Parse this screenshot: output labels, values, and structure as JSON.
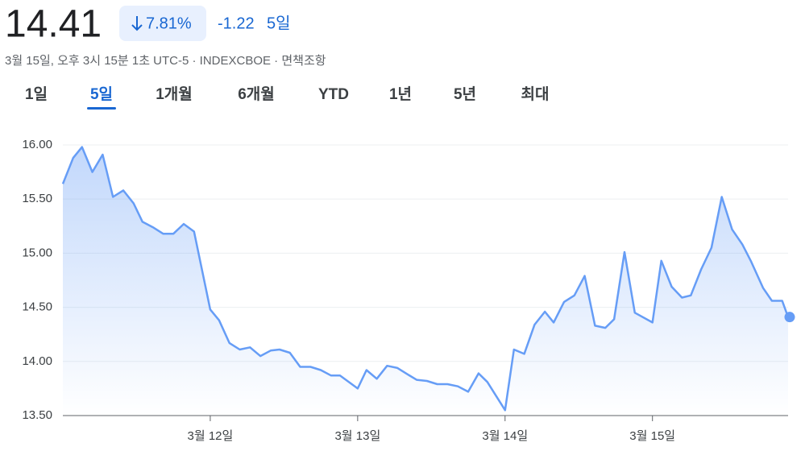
{
  "header": {
    "price": "14.41",
    "change_pct": "7.81%",
    "change": "-1.22",
    "period": "5일",
    "timestamp": "3월 15일, 오후 3시 15분 1초 UTC-5 · INDEXCBOE · 면책조항",
    "tabs": [
      "1일",
      "5일",
      "1개월",
      "6개월",
      "YTD",
      "1년",
      "5년",
      "최대"
    ],
    "active_tab": 1
  },
  "chart_data": {
    "type": "line",
    "area": true,
    "color": "#669df6",
    "grid": true,
    "x": [
      0,
      0.07,
      0.13,
      0.2,
      0.27,
      0.34,
      0.41,
      0.48,
      0.54,
      0.61,
      0.68,
      0.75,
      0.82,
      0.89,
      1.0,
      1.06,
      1.13,
      1.2,
      1.27,
      1.34,
      1.41,
      1.47,
      1.54,
      1.61,
      1.68,
      1.75,
      1.82,
      1.88,
      2.0,
      2.06,
      2.13,
      2.2,
      2.27,
      2.34,
      2.4,
      2.47,
      2.54,
      2.61,
      2.68,
      2.75,
      2.82,
      2.88,
      3.0,
      3.06,
      3.13,
      3.2,
      3.27,
      3.33,
      3.4,
      3.47,
      3.54,
      3.61,
      3.68,
      3.74,
      3.81,
      3.88,
      4.0,
      4.06,
      4.13,
      4.2,
      4.26,
      4.33,
      4.4,
      4.47,
      4.54,
      4.61,
      4.67,
      4.75,
      4.81,
      4.88,
      4.92
    ],
    "values": [
      15.64,
      15.88,
      15.98,
      15.75,
      15.91,
      15.52,
      15.58,
      15.46,
      15.29,
      15.24,
      15.18,
      15.18,
      15.27,
      15.2,
      14.48,
      14.38,
      14.17,
      14.11,
      14.13,
      14.05,
      14.1,
      14.11,
      14.08,
      13.95,
      13.95,
      13.92,
      13.87,
      13.87,
      13.75,
      13.92,
      13.84,
      13.96,
      13.94,
      13.88,
      13.83,
      13.82,
      13.79,
      13.79,
      13.77,
      13.72,
      13.89,
      13.81,
      13.55,
      14.11,
      14.07,
      14.34,
      14.46,
      14.36,
      14.55,
      14.61,
      14.79,
      14.33,
      14.31,
      14.39,
      15.01,
      14.45,
      14.36,
      14.93,
      14.69,
      14.59,
      14.61,
      14.85,
      15.05,
      15.52,
      15.22,
      15.08,
      14.92,
      14.68,
      14.56,
      14.56,
      14.41
    ],
    "xlim": [
      0,
      4.92
    ],
    "xticks": [
      {
        "value": 1,
        "label": "3월 12일"
      },
      {
        "value": 2,
        "label": "3월 13일"
      },
      {
        "value": 3,
        "label": "3월 14일"
      },
      {
        "value": 4,
        "label": "3월 15일"
      }
    ],
    "ylim": [
      13.5,
      16.26
    ],
    "yticks": [
      {
        "value": 13.5,
        "label": "13.50"
      },
      {
        "value": 14,
        "label": "14.00"
      },
      {
        "value": 14.5,
        "label": "14.50"
      },
      {
        "value": 15,
        "label": "15.00"
      },
      {
        "value": 15.5,
        "label": "15.50"
      },
      {
        "value": 16,
        "label": "16.00"
      }
    ]
  }
}
